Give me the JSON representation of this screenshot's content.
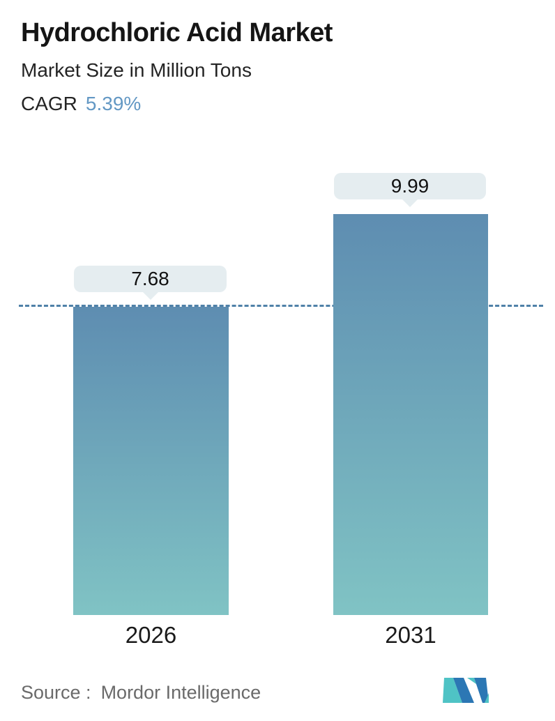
{
  "header": {
    "title": "Hydrochloric Acid Market",
    "subtitle": "Market Size in Million Tons",
    "cagr_label": "CAGR",
    "cagr_value": "5.39%",
    "cagr_value_color": "#6398c4"
  },
  "chart_data": {
    "type": "bar",
    "title": "Hydrochloric Acid Market",
    "subtitle": "Market Size in Million Tons",
    "unit": "Million Tons",
    "cagr_percent": 5.39,
    "categories": [
      "2026",
      "2031"
    ],
    "values": [
      7.68,
      9.99
    ],
    "value_labels": [
      "7.68",
      "9.99"
    ],
    "ylim": [
      0,
      11.3
    ],
    "grid": false,
    "legend": false,
    "annotations": [
      "horizontal dashed reference line at 2026 value (7.68)"
    ],
    "colors": {
      "bar_top": "#5e8db1",
      "bar_bottom": "#80c3c4",
      "callout_bg": "#e5edf0",
      "dashed_line": "#4f81a8",
      "label_text": "#1a1a1a"
    }
  },
  "footer": {
    "source_label": "Source :",
    "source_value": "Mordor Intelligence",
    "logo_name": "mordor-intelligence-logo",
    "logo_colors": {
      "blue": "#2c77b4",
      "teal": "#4fc3c5"
    }
  }
}
